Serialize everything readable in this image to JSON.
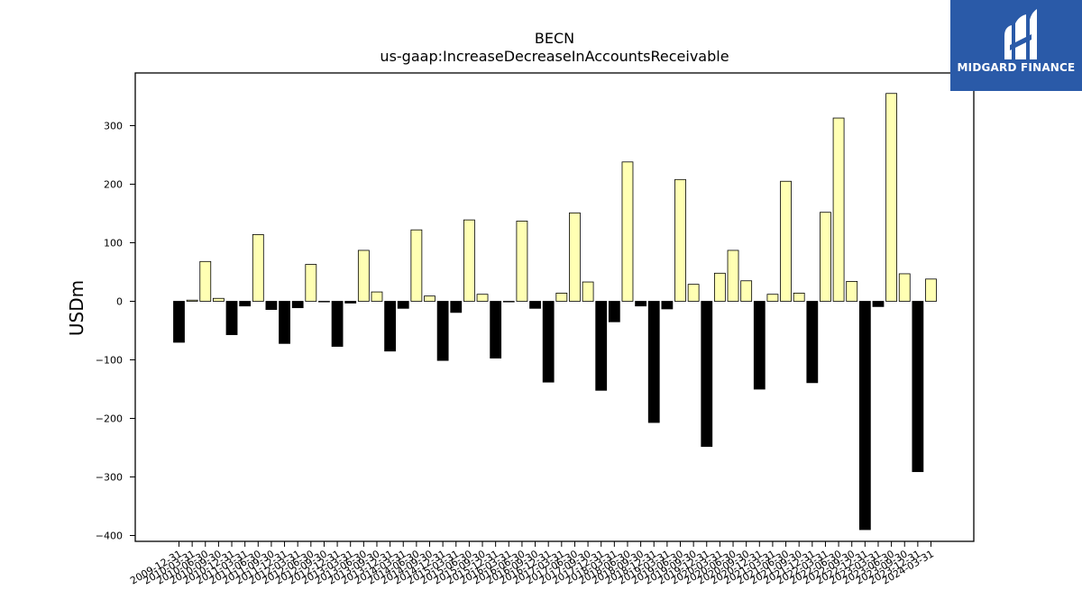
{
  "logo": {
    "text": "MIDGARD FINANCE",
    "icon": "midgard-m-logo-icon"
  },
  "colors": {
    "positive": "#ffffb3",
    "negative": "#000000",
    "logo_bg": "#2a5aa8"
  },
  "chart_data": {
    "type": "bar",
    "title": "BECN",
    "subtitle": "us-gaap:IncreaseDecreaseInAccountsReceivable",
    "ylabel": "USDm",
    "xlabel": "",
    "ylim": [
      -410,
      390
    ],
    "yticks": [
      -400,
      -300,
      -200,
      -100,
      0,
      100,
      200,
      300
    ],
    "grid": false,
    "categories": [
      "2009-12-31",
      "2010-03-31",
      "2010-06-30",
      "2010-09-30",
      "2010-12-31",
      "2011-03-31",
      "2011-06-30",
      "2011-09-30",
      "2011-12-31",
      "2012-03-31",
      "2012-06-30",
      "2012-09-30",
      "2012-12-31",
      "2013-03-31",
      "2013-06-30",
      "2013-09-30",
      "2013-12-31",
      "2014-03-31",
      "2014-06-30",
      "2014-09-30",
      "2014-12-31",
      "2015-03-31",
      "2015-06-30",
      "2015-09-30",
      "2015-12-31",
      "2016-03-31",
      "2016-06-30",
      "2016-09-30",
      "2016-12-31",
      "2017-03-31",
      "2017-06-30",
      "2017-09-30",
      "2017-12-31",
      "2018-03-31",
      "2018-06-30",
      "2018-09-30",
      "2018-12-31",
      "2019-03-31",
      "2019-06-30",
      "2019-09-30",
      "2019-12-31",
      "2020-03-31",
      "2020-06-30",
      "2020-09-30",
      "2020-12-31",
      "2021-03-31",
      "2021-06-30",
      "2021-09-30",
      "2021-12-31",
      "2022-03-31",
      "2022-06-30",
      "2022-09-30",
      "2022-12-31",
      "2023-03-31",
      "2023-06-30",
      "2023-09-30",
      "2023-12-31",
      "2024-03-31"
    ],
    "values": [
      -70,
      2,
      68,
      5,
      -57,
      -8,
      114,
      -14,
      -72,
      -11,
      63,
      -1,
      -77,
      -3,
      87,
      16,
      -85,
      -12,
      122,
      9,
      -101,
      -19,
      139,
      12,
      -97,
      -1,
      137,
      -12,
      -138,
      14,
      151,
      33,
      -152,
      -35,
      238,
      -8,
      -207,
      -13,
      208,
      29,
      -248,
      48,
      87,
      35,
      -150,
      12,
      205,
      14,
      -139,
      152,
      313,
      34,
      -390,
      -9,
      355,
      47,
      -291,
      38
    ]
  }
}
